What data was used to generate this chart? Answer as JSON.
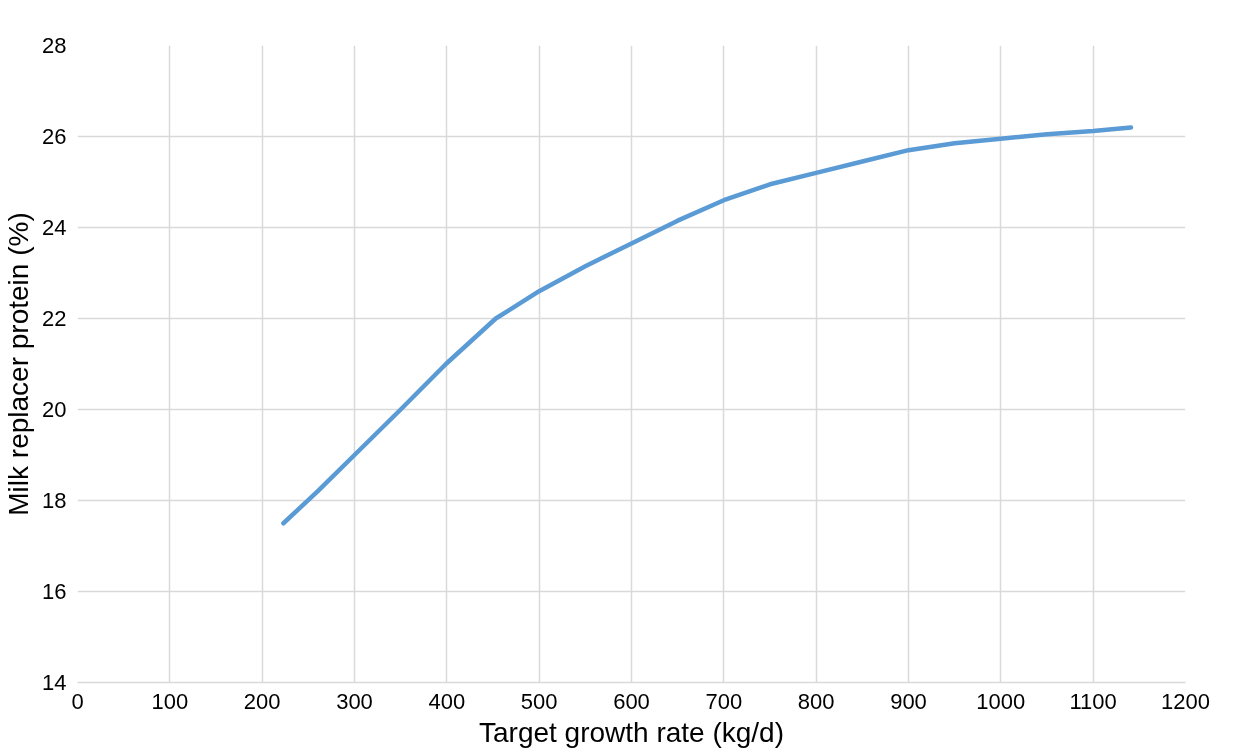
{
  "chart_data": {
    "type": "line",
    "xlabel": "Target growth rate (kg/d)",
    "ylabel": "Milk replacer protein (%)",
    "x": [
      223,
      260,
      300,
      350,
      399,
      453,
      500,
      550,
      600,
      650,
      700,
      750,
      800,
      850,
      900,
      950,
      1000,
      1050,
      1100,
      1141
    ],
    "series": [
      {
        "color": "#5b9bd5",
        "values": [
          17.5,
          18.2,
          19.0,
          20.0,
          21.0,
          22.0,
          22.6,
          23.15,
          23.65,
          24.15,
          24.6,
          24.95,
          25.2,
          25.45,
          25.7,
          25.85,
          25.95,
          26.05,
          26.12,
          26.2
        ]
      }
    ],
    "xlim": [
      0,
      1200
    ],
    "xticks": [
      0,
      100,
      200,
      300,
      400,
      500,
      600,
      700,
      800,
      900,
      1000,
      1100,
      1200
    ],
    "ylim": [
      14,
      28
    ],
    "yticks": [
      14,
      16,
      18,
      20,
      22,
      24,
      26,
      28
    ],
    "grid": true,
    "marker": "none",
    "line_style": "solid"
  }
}
